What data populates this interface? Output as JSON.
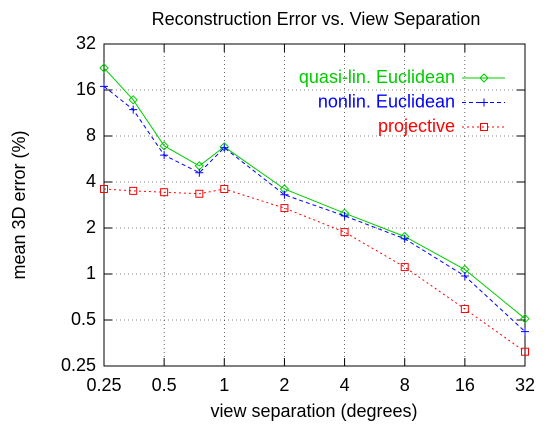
{
  "chart_data": {
    "type": "line",
    "title": "Reconstruction Error vs. View Separation",
    "x_label": "view separation (degrees)",
    "y_label": "mean 3D error (%)",
    "x": [
      0.25,
      0.35,
      0.5,
      0.75,
      1,
      2,
      4,
      8,
      16,
      32
    ],
    "series": [
      {
        "name": "quasi-lin. Euclidean",
        "color": "#00cc00",
        "marker": "diamond",
        "dash": "solid",
        "values": [
          22.3,
          13.8,
          6.9,
          5.1,
          6.8,
          3.6,
          2.5,
          1.76,
          1.07,
          0.51
        ]
      },
      {
        "name": "nonlin. Euclidean",
        "color": "#0000ff",
        "marker": "plus",
        "dash": "dashed",
        "values": [
          16.9,
          11.9,
          6.0,
          4.6,
          6.7,
          3.3,
          2.4,
          1.7,
          0.97,
          0.42
        ]
      },
      {
        "name": "projective",
        "color": "#ff0000",
        "marker": "square",
        "dash": "dotted",
        "values": [
          3.6,
          3.5,
          3.43,
          3.35,
          3.6,
          2.7,
          1.88,
          1.11,
          0.59,
          0.31
        ]
      }
    ],
    "xlim": [
      0.25,
      32
    ],
    "ylim": [
      0.25,
      32
    ],
    "xticks": [
      0.25,
      0.5,
      1,
      2,
      4,
      8,
      16,
      32
    ],
    "yticks": [
      0.25,
      0.5,
      1,
      2,
      4,
      8,
      16,
      32
    ],
    "xscale": "log",
    "yscale": "log",
    "grid": true,
    "legend": "top-right"
  }
}
